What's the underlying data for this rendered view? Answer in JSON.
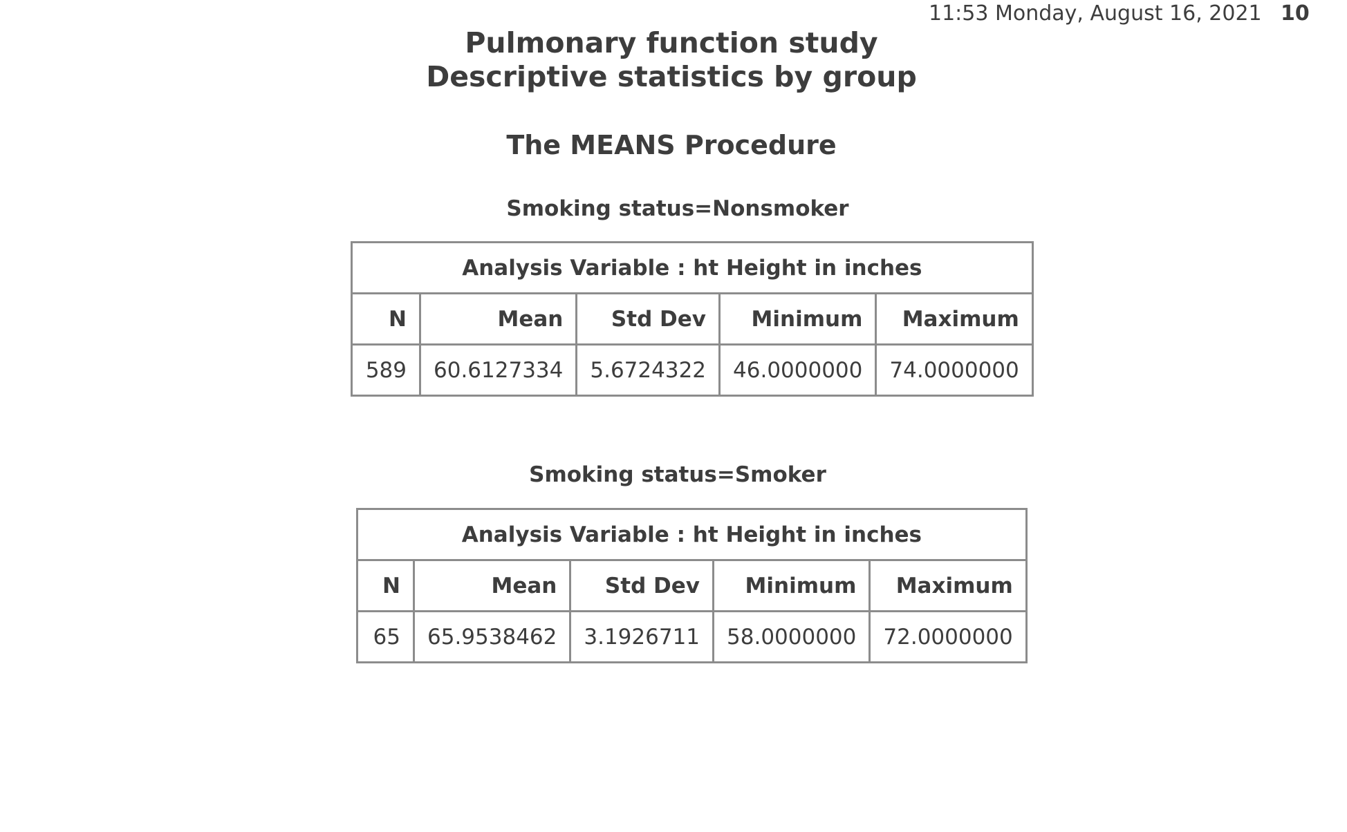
{
  "header": {
    "datetime": "11:53 Monday, August 16, 2021",
    "page_number": "10"
  },
  "titles": {
    "line1": "Pulmonary function study",
    "line2": "Descriptive statistics by group",
    "procedure": "The MEANS Procedure"
  },
  "groups": [
    {
      "by_line": "Smoking status=Nonsmoker",
      "caption": "Analysis Variable : ht Height in inches",
      "columns": [
        "N",
        "Mean",
        "Std Dev",
        "Minimum",
        "Maximum"
      ],
      "values": [
        "589",
        "60.6127334",
        "5.6724322",
        "46.0000000",
        "74.0000000"
      ]
    },
    {
      "by_line": "Smoking status=Smoker",
      "caption": "Analysis Variable : ht Height in inches",
      "columns": [
        "N",
        "Mean",
        "Std Dev",
        "Minimum",
        "Maximum"
      ],
      "values": [
        "65",
        "65.9538462",
        "3.1926711",
        "58.0000000",
        "72.0000000"
      ]
    }
  ],
  "colors": {
    "text": "#3d3d3d",
    "border": "#8c8c8c",
    "background": "#ffffff"
  }
}
